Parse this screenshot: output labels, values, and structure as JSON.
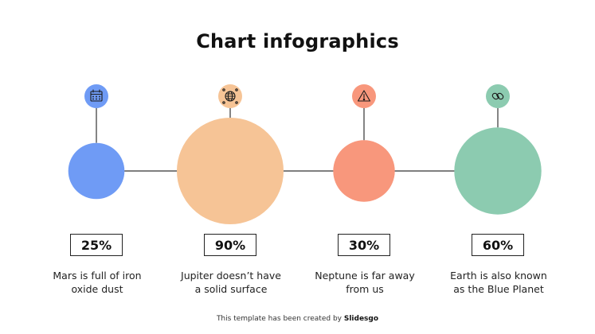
{
  "title": "Chart infographics",
  "credit": {
    "text": "This template has been created by",
    "brand": "Slidesgo"
  },
  "chart_data": {
    "type": "bubble",
    "title": "Chart infographics",
    "items": [
      {
        "label": "25%",
        "value": 25,
        "description": [
          "Mars is full of iron",
          "oxide dust"
        ],
        "color": "#6f9bf5",
        "icon": "calendar-icon"
      },
      {
        "label": "90%",
        "value": 90,
        "description": [
          "Jupiter doesn’t have",
          "a solid surface"
        ],
        "color": "#f6c496",
        "icon": "globe-icon"
      },
      {
        "label": "30%",
        "value": 30,
        "description": [
          "Neptune is far away",
          "from us"
        ],
        "color": "#f8977c",
        "icon": "warning-icon"
      },
      {
        "label": "60%",
        "value": 60,
        "description": [
          "Earth is also known",
          "as the Blue Planet"
        ],
        "color": "#8ccbb0",
        "icon": "link-icon"
      }
    ]
  }
}
